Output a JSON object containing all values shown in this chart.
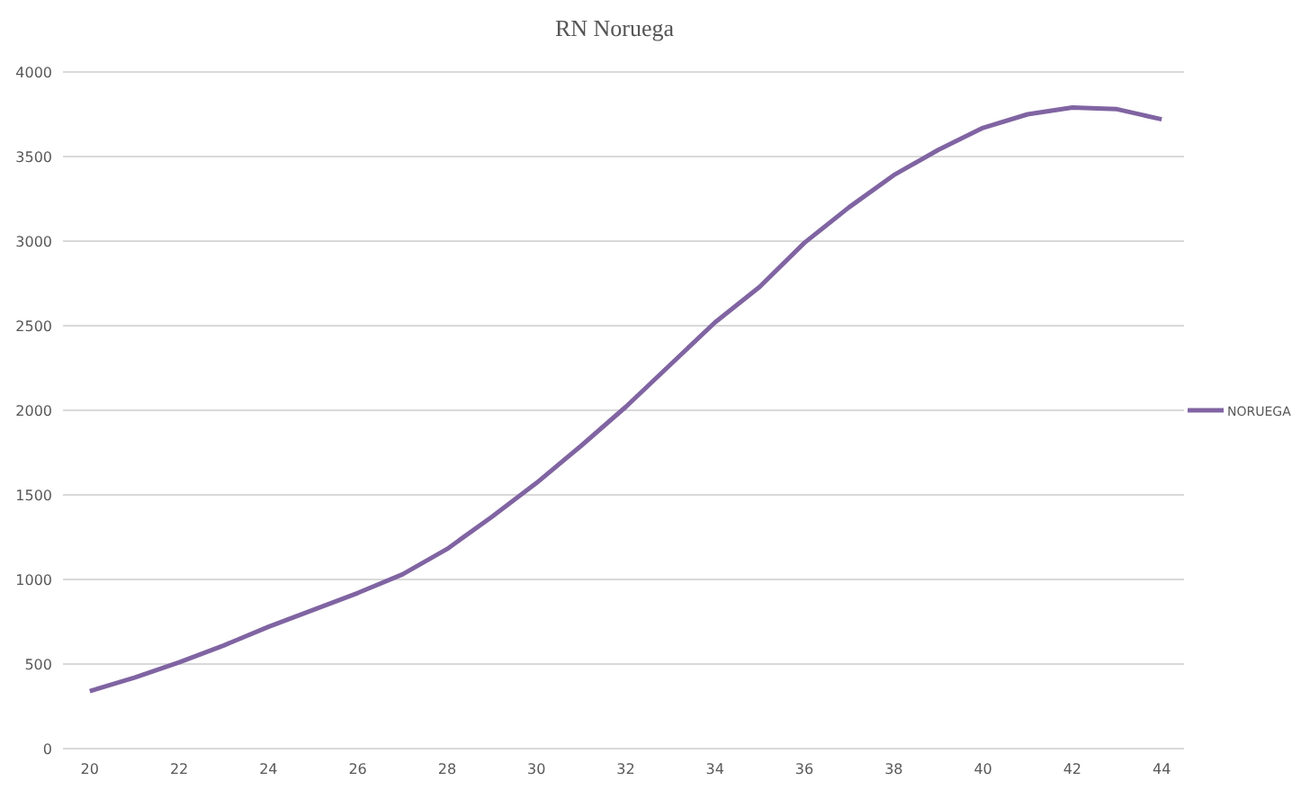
{
  "chart_data": {
    "type": "line",
    "title": "RN Noruega",
    "x": [
      20,
      21,
      22,
      23,
      24,
      25,
      26,
      27,
      28,
      29,
      30,
      31,
      32,
      33,
      34,
      35,
      36,
      37,
      38,
      39,
      40,
      41,
      42,
      43,
      44
    ],
    "series": [
      {
        "name": "NORUEGA",
        "color": "#8064a2",
        "values": [
          340,
          420,
          510,
          610,
          720,
          820,
          920,
          1030,
          1180,
          1370,
          1570,
          1790,
          2020,
          2270,
          2520,
          2730,
          2990,
          3200,
          3390,
          3540,
          3670,
          3750,
          3790,
          3780,
          3720
        ]
      }
    ],
    "xlim": [
      19.4,
      44.5
    ],
    "xticks": [
      20,
      22,
      24,
      26,
      28,
      30,
      32,
      34,
      36,
      38,
      40,
      42,
      44
    ],
    "ylim": [
      0,
      4000
    ],
    "yticks": [
      0,
      500,
      1000,
      1500,
      2000,
      2500,
      3000,
      3500,
      4000
    ],
    "grid": "y",
    "legend": "right",
    "marker": "none",
    "line_style": "solid"
  }
}
